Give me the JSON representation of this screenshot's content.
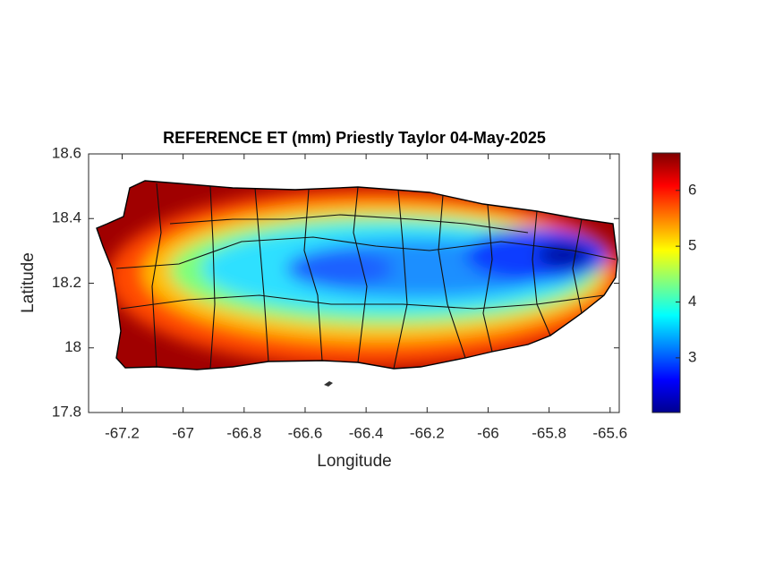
{
  "chart_data": {
    "type": "map",
    "title": "REFERENCE ET (mm) Priestly Taylor 04-May-2025",
    "xlabel": "Longitude",
    "ylabel": "Latitude",
    "xlim": [
      -67.31,
      -65.57
    ],
    "xticks": [
      -67.2,
      -67,
      -66.8,
      -66.6,
      -66.4,
      -66.2,
      -66,
      -65.8,
      -65.6
    ],
    "ylim": [
      17.8,
      18.6
    ],
    "yticks": [
      17.8,
      18,
      18.2,
      18.4,
      18.6
    ],
    "colorbar": {
      "colormap": "jet",
      "clim": [
        2.02,
        6.67
      ],
      "ticks": [
        3,
        4,
        5,
        6
      ]
    }
  }
}
